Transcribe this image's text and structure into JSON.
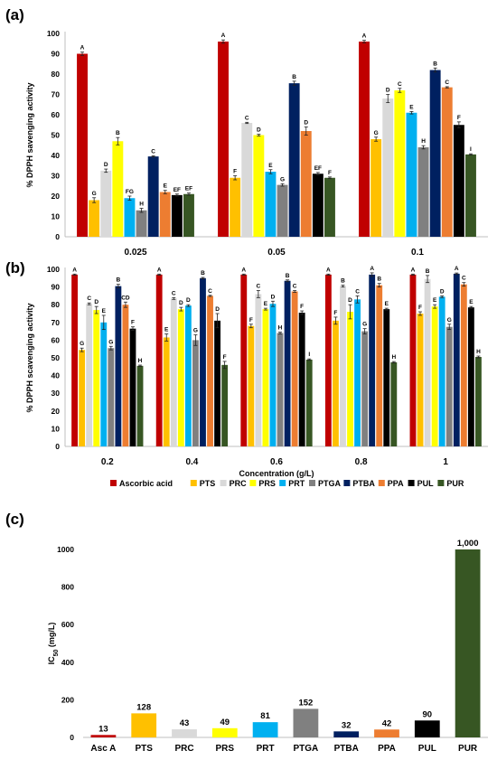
{
  "colors": {
    "Ascorbic acid": "#c00000",
    "PTS": "#ffc000",
    "PRC": "#d9d9d9",
    "PRS": "#ffff00",
    "PRT": "#00b0f0",
    "PTGA": "#808080",
    "PTBA": "#002060",
    "PPA": "#ed7d31",
    "PUL": "#000000",
    "PUR": "#375623"
  },
  "legend": [
    "Ascorbic acid",
    "PTS",
    "PRC",
    "PRS",
    "PRT",
    "PTGA",
    "PTBA",
    "PPA",
    "PUL",
    "PUR"
  ],
  "chart_data": [
    {
      "panel": "(a)",
      "type": "bar",
      "ylabel": "% DPPH savenging activity",
      "xlabel": "",
      "ylim": [
        0,
        100
      ],
      "yticks": [
        0,
        10,
        20,
        30,
        40,
        50,
        60,
        70,
        80,
        90,
        100
      ],
      "categories": [
        "0.025",
        "0.05",
        "0.1"
      ],
      "series": [
        {
          "name": "Ascorbic acid",
          "values": [
            90,
            96,
            96
          ],
          "errors": [
            0.8,
            0.8,
            0.6
          ],
          "letters": [
            "A",
            "A",
            "A"
          ]
        },
        {
          "name": "PTS",
          "values": [
            18,
            29,
            48
          ],
          "errors": [
            1.2,
            1,
            1
          ],
          "letters": [
            "G",
            "F",
            "G"
          ]
        },
        {
          "name": "PRC",
          "values": [
            32.5,
            56,
            68
          ],
          "errors": [
            0.8,
            0.3,
            2
          ],
          "letters": [
            "D",
            "C",
            "D"
          ]
        },
        {
          "name": "PRS",
          "values": [
            47,
            50,
            72
          ],
          "errors": [
            1.8,
            0.4,
            1
          ],
          "letters": [
            "B",
            "D",
            "C"
          ]
        },
        {
          "name": "PRT",
          "values": [
            19,
            32,
            61
          ],
          "errors": [
            1,
            1,
            0.6
          ],
          "letters": [
            "FG",
            "E",
            "E"
          ]
        },
        {
          "name": "PTGA",
          "values": [
            13,
            25.5,
            44
          ],
          "errors": [
            1,
            0.6,
            0.8
          ],
          "letters": [
            "H",
            "G",
            "H"
          ]
        },
        {
          "name": "PTBA",
          "values": [
            39.5,
            75.5,
            82
          ],
          "errors": [
            0.3,
            1,
            1
          ],
          "letters": [
            "C",
            "B",
            "B"
          ]
        },
        {
          "name": "PPA",
          "values": [
            22,
            52,
            73.5
          ],
          "errors": [
            0.8,
            2,
            0.3
          ],
          "letters": [
            "E",
            "D",
            "C"
          ]
        },
        {
          "name": "PUL",
          "values": [
            20.5,
            31,
            55
          ],
          "errors": [
            0.5,
            0.6,
            1.5
          ],
          "letters": [
            "EF",
            "EF",
            "F"
          ]
        },
        {
          "name": "PUR",
          "values": [
            21,
            29,
            40.5
          ],
          "errors": [
            0.5,
            0.4,
            0.3
          ],
          "letters": [
            "EF",
            "F",
            "I"
          ]
        }
      ]
    },
    {
      "panel": "(b)",
      "type": "bar",
      "ylabel": "% DPPH scavenging activity",
      "xlabel": "Concentration (g/L)",
      "ylim": [
        0,
        100
      ],
      "yticks": [
        0,
        10,
        20,
        30,
        40,
        50,
        60,
        70,
        80,
        90,
        100
      ],
      "categories": [
        "0.2",
        "0.4",
        "0.6",
        "0.8",
        "1"
      ],
      "series": [
        {
          "name": "Ascorbic acid",
          "values": [
            97,
            97,
            97,
            97,
            97
          ],
          "errors": [
            0.3,
            0.3,
            0.3,
            0.3,
            0.3
          ],
          "letters": [
            "A",
            "A",
            "A",
            "A",
            "A"
          ]
        },
        {
          "name": "PTS",
          "values": [
            54.5,
            61.5,
            68,
            71,
            75
          ],
          "errors": [
            1,
            2,
            1,
            2,
            1
          ],
          "letters": [
            "G",
            "E",
            "F",
            "F",
            "F"
          ]
        },
        {
          "name": "PRC",
          "values": [
            80.5,
            83.5,
            86,
            90.5,
            94.5
          ],
          "errors": [
            0.5,
            0.5,
            2,
            0.5,
            2
          ],
          "letters": [
            "C",
            "C",
            "C",
            "B",
            "B"
          ]
        },
        {
          "name": "PRS",
          "values": [
            77,
            77.5,
            77.5,
            76,
            79
          ],
          "errors": [
            2,
            1,
            0.5,
            4,
            1
          ],
          "letters": [
            "D",
            "D",
            "E",
            "D",
            "E"
          ]
        },
        {
          "name": "PRT",
          "values": [
            70,
            79.5,
            80.5,
            83,
            84.5
          ],
          "errors": [
            4,
            0.5,
            1.5,
            2,
            0.5
          ],
          "letters": [
            "E",
            "D",
            "D",
            "C",
            "D"
          ]
        },
        {
          "name": "PTGA",
          "values": [
            55.5,
            60,
            64,
            65,
            67.5
          ],
          "errors": [
            1,
            3,
            0.5,
            1.5,
            1.5
          ],
          "letters": [
            "G",
            "G",
            "H",
            "G",
            "G"
          ]
        },
        {
          "name": "PTBA",
          "values": [
            90.5,
            95,
            93.5,
            97,
            97.5
          ],
          "errors": [
            1,
            0.4,
            0.5,
            1,
            0.4
          ],
          "letters": [
            "B",
            "B",
            "B",
            "A",
            "A"
          ]
        },
        {
          "name": "PPA",
          "values": [
            80,
            85,
            87.5,
            91,
            91.5
          ],
          "errors": [
            1.5,
            0.3,
            0.5,
            1,
            1
          ],
          "letters": [
            "CD",
            "C",
            "C",
            "B",
            "C"
          ]
        },
        {
          "name": "PUL",
          "values": [
            66.5,
            71,
            75.5,
            77.5,
            78.5
          ],
          "errors": [
            1,
            4,
            1,
            0.5,
            0.5
          ],
          "letters": [
            "F",
            "D",
            "F",
            "E",
            "E"
          ]
        },
        {
          "name": "PUR",
          "values": [
            45.5,
            46,
            49,
            47.5,
            50.5
          ],
          "errors": [
            0.4,
            2,
            0.4,
            0.4,
            0.5
          ],
          "letters": [
            "H",
            "F",
            "I",
            "H",
            "H"
          ]
        }
      ]
    },
    {
      "panel": "(c)",
      "type": "bar",
      "ylabel": "IC50 (mg/L)",
      "xlabel": "",
      "ylim": [
        0,
        1000
      ],
      "yticks": [
        0,
        200,
        400,
        600,
        800,
        1000
      ],
      "ytick_labels": [
        "0",
        "200",
        "400",
        "600",
        "800",
        "1000"
      ],
      "categories": [
        "Asc A",
        "PTS",
        "PRC",
        "PRS",
        "PRT",
        "PTGA",
        "PTBA",
        "PPA",
        "PUL",
        "PUR"
      ],
      "values": [
        13,
        128,
        43,
        49,
        81,
        152,
        32,
        42,
        90,
        1000
      ],
      "data_labels": [
        "13",
        "128",
        "43",
        "49",
        "81",
        "152",
        "32",
        "42",
        "90",
        "1,000"
      ]
    }
  ]
}
